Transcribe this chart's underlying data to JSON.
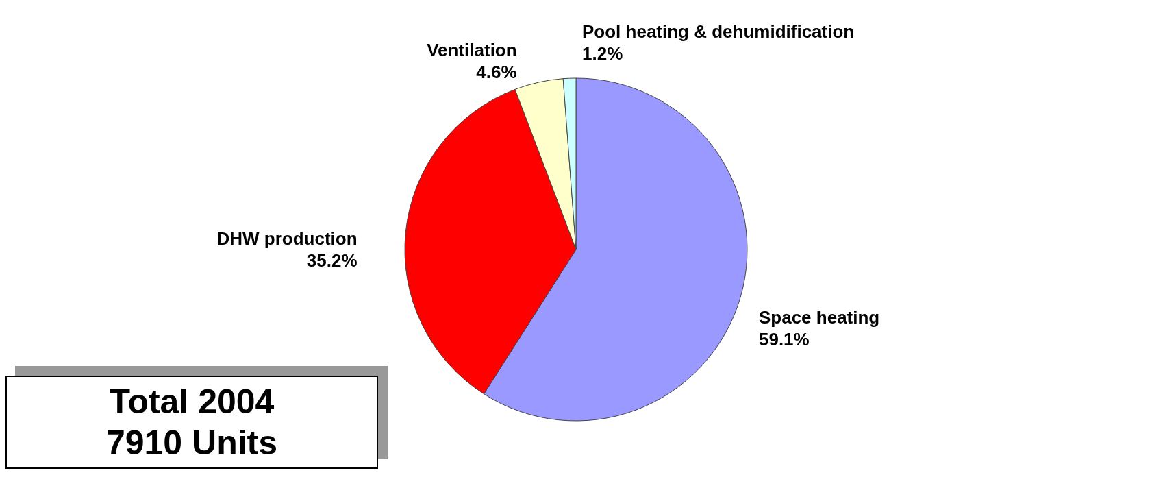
{
  "chart_data": {
    "type": "pie",
    "categories": [
      "Space heating",
      "DHW production",
      "Ventilation",
      "Pool heating & dehumidification"
    ],
    "values": [
      59.1,
      35.2,
      4.6,
      1.2
    ],
    "value_labels": [
      "59.1%",
      "35.2%",
      "4.6%",
      "1.2%"
    ],
    "colors": [
      "#9999ff",
      "#ff0000",
      "#ffffcc",
      "#ccffff"
    ],
    "annotations": [
      "Total 2004",
      "7910 Units"
    ]
  }
}
